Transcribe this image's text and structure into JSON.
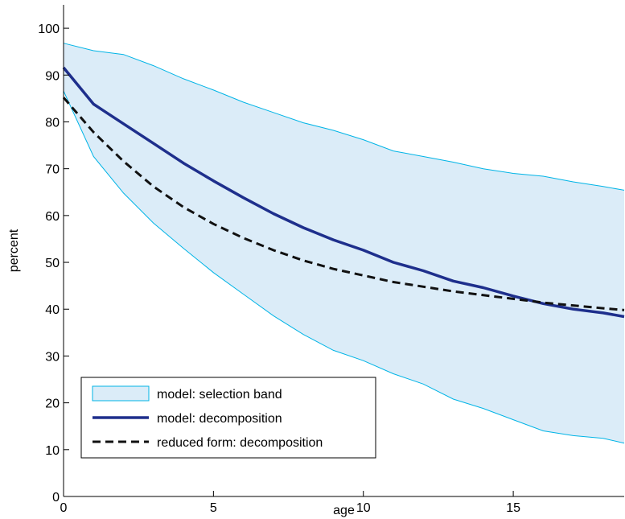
{
  "chart_data": {
    "type": "line",
    "title": "",
    "xlabel": "age",
    "ylabel": "percent",
    "xlim": [
      0,
      18.7
    ],
    "ylim": [
      0,
      105
    ],
    "xticks": [
      0,
      5,
      10,
      15
    ],
    "yticks": [
      0,
      10,
      20,
      30,
      40,
      50,
      60,
      70,
      80,
      90,
      100
    ],
    "grid": false,
    "legend_position": "bottom-left",
    "x": [
      0,
      1,
      2,
      3,
      4,
      5,
      6,
      7,
      8,
      9,
      10,
      11,
      12,
      13,
      14,
      15,
      16,
      17,
      18,
      18.7
    ],
    "band": {
      "name": "model: selection band",
      "color": "#dbecf8",
      "edge_color": "#00b4e6",
      "upper": [
        96.8,
        95.2,
        94.4,
        92.0,
        89.2,
        86.8,
        84.2,
        82.0,
        79.8,
        78.2,
        76.2,
        73.8,
        72.6,
        71.4,
        70.0,
        69.0,
        68.4,
        67.2,
        66.2,
        65.4
      ],
      "lower": [
        86.6,
        72.6,
        64.8,
        58.4,
        53.0,
        47.8,
        43.2,
        38.6,
        34.6,
        31.2,
        29.0,
        26.2,
        24.0,
        20.8,
        18.8,
        16.4,
        14.0,
        13.0,
        12.4,
        11.4
      ]
    },
    "series": [
      {
        "name": "model: decomposition",
        "color": "#1e2f8c",
        "style": "solid",
        "values": [
          91.6,
          83.8,
          79.6,
          75.4,
          71.2,
          67.4,
          63.8,
          60.4,
          57.4,
          54.8,
          52.6,
          50.0,
          48.2,
          46.0,
          44.6,
          42.8,
          41.2,
          40.0,
          39.2,
          38.4
        ]
      },
      {
        "name": "reduced form: decomposition",
        "color": "#111111",
        "style": "dashed",
        "values": [
          85.2,
          77.8,
          71.6,
          66.2,
          61.8,
          58.2,
          55.2,
          52.6,
          50.4,
          48.6,
          47.2,
          45.8,
          44.8,
          43.8,
          43.0,
          42.2,
          41.4,
          40.8,
          40.2,
          39.8
        ]
      }
    ]
  }
}
